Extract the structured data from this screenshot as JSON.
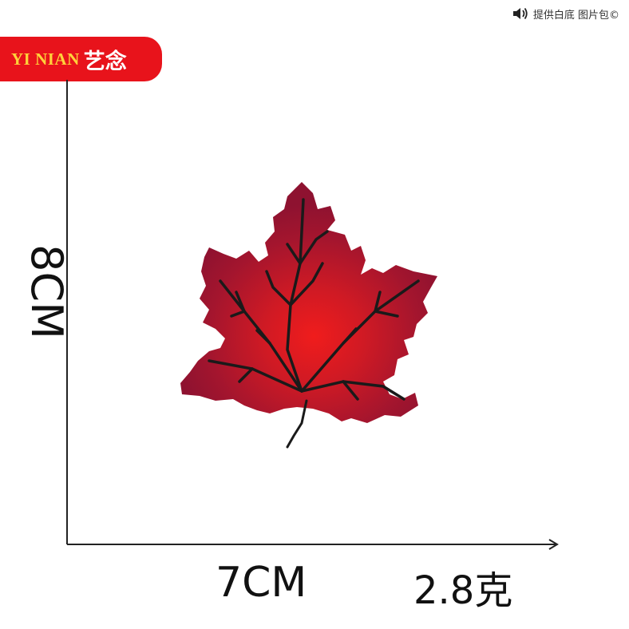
{
  "brand": {
    "latin": "YI NIAN",
    "chinese": "艺念",
    "bg_color": "#e8131b"
  },
  "watermark": {
    "icon": "speaker-icon",
    "text": "提供白底 图片包©"
  },
  "dimensions": {
    "height": "8CM",
    "width": "7CM",
    "weight": "2.8克"
  },
  "product": {
    "icon": "maple-leaf-embroidery",
    "primary_color": "#a3152e",
    "highlight_color": "#e31b23",
    "vein_color": "#1a1a1a"
  }
}
